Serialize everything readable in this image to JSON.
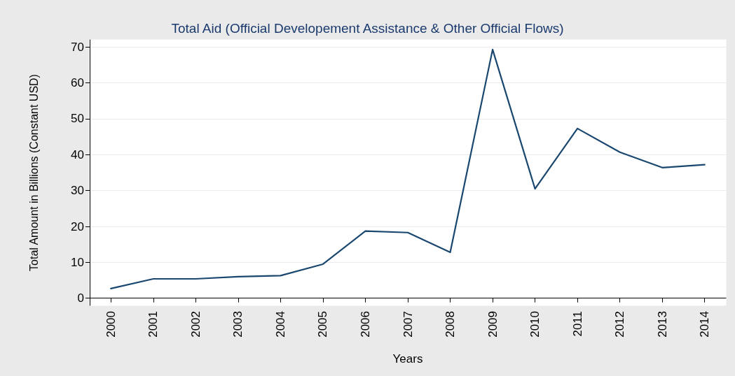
{
  "chart_data": {
    "type": "line",
    "title": "Total Aid (Official Developement Assistance & Other Official Flows)",
    "xlabel": "Years",
    "ylabel": "Total Amount in Billions (Constant USD)",
    "categories": [
      "2000",
      "2001",
      "2002",
      "2003",
      "2004",
      "2005",
      "2006",
      "2007",
      "2008",
      "2009",
      "2010",
      "2011",
      "2012",
      "2013",
      "2014"
    ],
    "series": [
      {
        "color": "#1a476f",
        "values": [
          2.7,
          5.4,
          5.4,
          6.0,
          6.3,
          9.5,
          18.7,
          18.3,
          12.8,
          69.3,
          30.5,
          47.3,
          40.7,
          36.4,
          37.2
        ]
      }
    ],
    "ylim": [
      -2,
      72
    ],
    "yticks": [
      0,
      10,
      20,
      30,
      40,
      50,
      60,
      70
    ],
    "grid": "y",
    "marker": "none",
    "line_style": "solid"
  }
}
